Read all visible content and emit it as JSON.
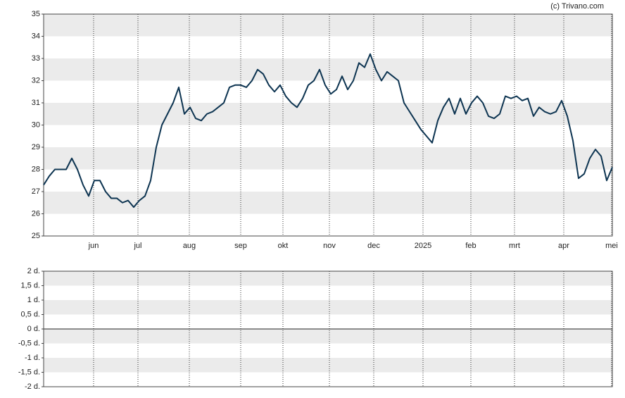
{
  "chart_data": [
    {
      "type": "line",
      "credit": "(c) Trivano.com",
      "color": "#0d3451",
      "grid": true,
      "ylim": [
        25,
        35
      ],
      "yticks": [
        25,
        26,
        27,
        28,
        29,
        30,
        31,
        32,
        33,
        34,
        35
      ],
      "xlim": [
        0,
        101
      ],
      "xticks": [
        {
          "value": 8.875,
          "label": "jun"
        },
        {
          "value": 16.75,
          "label": "jul"
        },
        {
          "value": 25.875,
          "label": "aug"
        },
        {
          "value": 35,
          "label": "sep"
        },
        {
          "value": 42.5,
          "label": "okt"
        },
        {
          "value": 50.75,
          "label": "nov"
        },
        {
          "value": 58.625,
          "label": "dec"
        },
        {
          "value": 67.375,
          "label": "2025"
        },
        {
          "value": 75.875,
          "label": "feb"
        },
        {
          "value": 83.625,
          "label": "mrt"
        },
        {
          "value": 92.375,
          "label": "apr"
        },
        {
          "value": 100.875,
          "label": "mei"
        }
      ],
      "values": [
        27.3,
        27.7,
        28.0,
        28.0,
        28.0,
        28.5,
        28.0,
        27.3,
        26.8,
        27.5,
        27.5,
        27.0,
        26.7,
        26.7,
        26.5,
        26.6,
        26.3,
        26.6,
        26.8,
        27.5,
        29.0,
        30.0,
        30.5,
        31.0,
        31.7,
        30.5,
        30.8,
        30.3,
        30.2,
        30.5,
        30.6,
        30.8,
        31.0,
        31.7,
        31.8,
        31.8,
        31.7,
        32.0,
        32.5,
        32.3,
        31.8,
        31.5,
        31.8,
        31.3,
        31.0,
        30.8,
        31.2,
        31.8,
        32.0,
        32.5,
        31.8,
        31.4,
        31.6,
        32.2,
        31.6,
        32.0,
        32.8,
        32.6,
        33.2,
        32.5,
        32.0,
        32.4,
        32.2,
        32.0,
        31.0,
        30.6,
        30.2,
        29.8,
        29.5,
        29.2,
        30.2,
        30.8,
        31.2,
        30.5,
        31.2,
        30.5,
        31.0,
        31.3,
        31.0,
        30.4,
        30.3,
        30.5,
        31.3,
        31.2,
        31.3,
        31.1,
        31.2,
        30.4,
        30.8,
        30.6,
        30.5,
        30.6,
        31.1,
        30.4,
        29.3,
        27.6,
        27.8,
        28.5,
        28.9,
        28.6,
        27.5,
        28.1
      ]
    },
    {
      "type": "bar",
      "grid": true,
      "ylim": [
        -2,
        2
      ],
      "yticks": [
        {
          "value": -2,
          "label": "-2 d."
        },
        {
          "value": -1.5,
          "label": "-1,5 d."
        },
        {
          "value": -1,
          "label": "-1 d."
        },
        {
          "value": -0.5,
          "label": "-0,5 d."
        },
        {
          "value": 0,
          "label": "0 d."
        },
        {
          "value": 0.5,
          "label": "0,5 d."
        },
        {
          "value": 1,
          "label": "1 d."
        },
        {
          "value": 1.5,
          "label": "1,5 d."
        },
        {
          "value": 2,
          "label": "2 d."
        }
      ]
    }
  ]
}
